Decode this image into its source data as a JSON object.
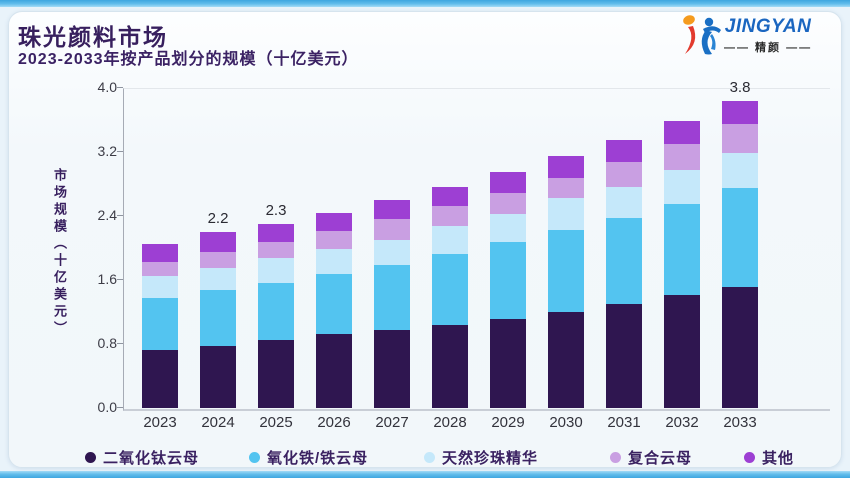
{
  "header": {
    "title": "珠光颜料市场",
    "subtitle": "2023-2033年按产品划分的规模（十亿美元）",
    "logo": {
      "brand": "JINGYAN",
      "brand_cn": "—— 精颜 ——"
    }
  },
  "chart_data": {
    "type": "bar",
    "stacked": true,
    "title": "珠光颜料市场",
    "subtitle": "2023-2033年按产品划分的规模（十亿美元）",
    "ylabel": "市场规模（十亿美元）",
    "xlabel": "",
    "ylim": [
      0,
      4.0
    ],
    "yticks": [
      0.0,
      0.8,
      1.6,
      2.4,
      3.2,
      4.0
    ],
    "grid": false,
    "legend_position": "bottom",
    "categories": [
      "2023",
      "2024",
      "2025",
      "2026",
      "2027",
      "2028",
      "2029",
      "2030",
      "2031",
      "2032",
      "2033"
    ],
    "series": [
      {
        "name": "二氧化钛云母",
        "color": "#2f1650",
        "values": [
          0.73,
          0.78,
          0.85,
          0.92,
          0.97,
          1.04,
          1.11,
          1.2,
          1.3,
          1.41,
          1.51
        ]
      },
      {
        "name": "氧化铁/铁云母",
        "color": "#53c4f0",
        "values": [
          0.65,
          0.69,
          0.71,
          0.76,
          0.82,
          0.89,
          0.96,
          1.02,
          1.08,
          1.14,
          1.24
        ]
      },
      {
        "name": "天然珍珠精华",
        "color": "#c5e8fa",
        "values": [
          0.27,
          0.28,
          0.32,
          0.31,
          0.31,
          0.35,
          0.35,
          0.41,
          0.38,
          0.43,
          0.44
        ]
      },
      {
        "name": "复合云母",
        "color": "#c99fe2",
        "values": [
          0.17,
          0.2,
          0.19,
          0.22,
          0.26,
          0.25,
          0.27,
          0.25,
          0.32,
          0.32,
          0.36
        ]
      },
      {
        "name": "其他",
        "color": "#9d3fd3",
        "values": [
          0.23,
          0.25,
          0.23,
          0.23,
          0.24,
          0.23,
          0.26,
          0.27,
          0.27,
          0.29,
          0.29
        ]
      }
    ],
    "totals": [
      2.05,
      2.2,
      2.3,
      2.45,
      2.6,
      2.75,
      2.95,
      3.15,
      3.35,
      3.6,
      3.8
    ],
    "bar_total_labels": [
      null,
      "2.2",
      "2.3",
      null,
      null,
      null,
      null,
      null,
      null,
      null,
      "3.8"
    ]
  }
}
